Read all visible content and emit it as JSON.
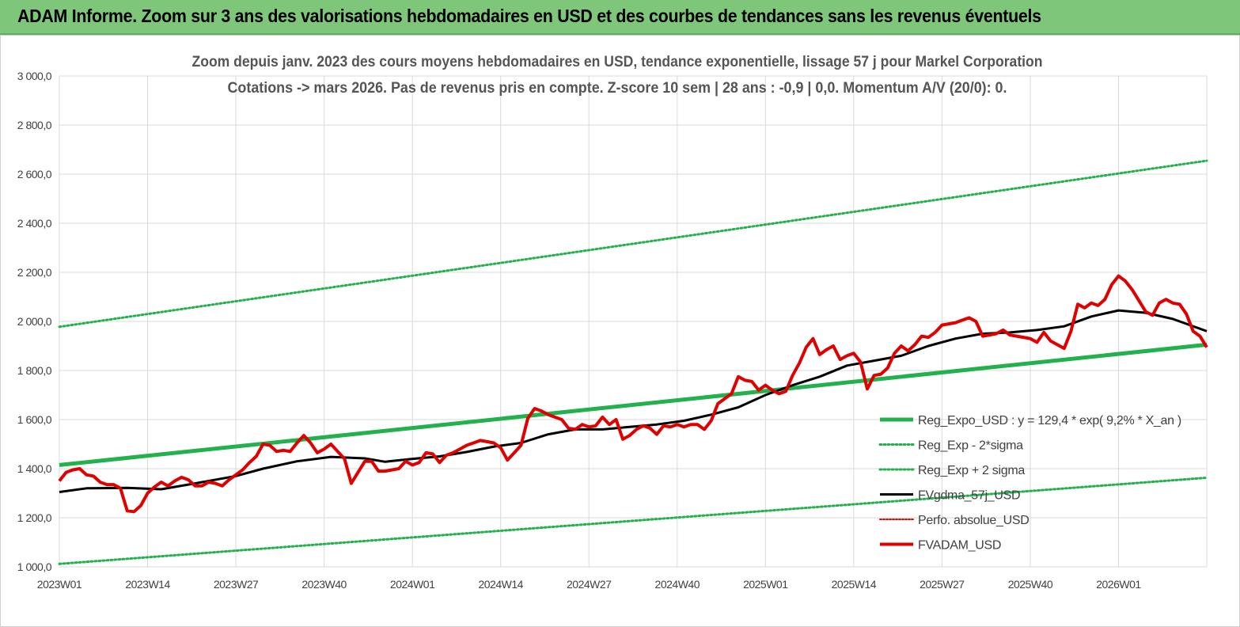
{
  "banner": {
    "title": "ADAM Informe. Zoom sur 3 ans des valorisations hebdomadaires en USD et des courbes de tendances sans les revenus éventuels"
  },
  "colors": {
    "banner_bg": "#7dc67a",
    "regression": "#22b14c",
    "sigma": "#22b14c",
    "fvgdma": "#000000",
    "perfo": "#e00000",
    "fvadam": "#e00000",
    "grid": "#d9d9d9"
  },
  "chart_data": {
    "type": "line",
    "title": "Zoom depuis janv. 2023 des cours moyens hebdomadaires en USD, tendance exponentielle, lissage 57 j pour Markel Corporation",
    "subtitle": "Cotations -> mars 2026. Pas de revenus pris en compte. Z-score 10 sem | 28 ans : -0,9 | 0,0. Momentum A/V (20/0): 0.",
    "xlabel": "",
    "ylabel": "",
    "ylim": [
      1000,
      3000
    ],
    "y_ticks": [
      "1 000,0",
      "1 200,0",
      "1 400,0",
      "1 600,0",
      "1 800,0",
      "2 000,0",
      "2 200,0",
      "2 400,0",
      "2 600,0",
      "2 800,0",
      "3 000,0"
    ],
    "x_ticks": [
      "2023W01",
      "2023W14",
      "2023W27",
      "2023W40",
      "2024W01",
      "2024W14",
      "2024W27",
      "2024W40",
      "2025W01",
      "2025W14",
      "2025W27",
      "2025W40",
      "2026W01"
    ],
    "x_tick_index": [
      0,
      13,
      26,
      39,
      52,
      65,
      78,
      91,
      104,
      117,
      130,
      143,
      156
    ],
    "n_weeks": 170,
    "grid": true,
    "legend_position": "right",
    "series": [
      {
        "name": "Reg_Expo_USD : y = 129,4 * exp( 9,2% * X_an )",
        "style": "solid-thick",
        "points": [
          [
            0,
            1415
          ],
          [
            169,
            1905
          ]
        ]
      },
      {
        "name": "Reg_Exp - 2*sigma",
        "style": "dotted",
        "points": [
          [
            0,
            1012
          ],
          [
            169,
            1363
          ]
        ]
      },
      {
        "name": "Reg_Exp + 2 sigma",
        "style": "dotted",
        "points": [
          [
            0,
            1978
          ],
          [
            169,
            2655
          ]
        ]
      },
      {
        "name": "FVgdma_57j_USD",
        "style": "solid",
        "points": [
          [
            0,
            1305
          ],
          [
            4,
            1320
          ],
          [
            10,
            1322
          ],
          [
            15,
            1316
          ],
          [
            20,
            1340
          ],
          [
            26,
            1370
          ],
          [
            30,
            1400
          ],
          [
            35,
            1430
          ],
          [
            40,
            1448
          ],
          [
            45,
            1442
          ],
          [
            48,
            1428
          ],
          [
            52,
            1440
          ],
          [
            56,
            1450
          ],
          [
            60,
            1468
          ],
          [
            64,
            1490
          ],
          [
            68,
            1505
          ],
          [
            72,
            1540
          ],
          [
            76,
            1560
          ],
          [
            80,
            1560
          ],
          [
            84,
            1570
          ],
          [
            88,
            1580
          ],
          [
            92,
            1595
          ],
          [
            96,
            1620
          ],
          [
            100,
            1650
          ],
          [
            104,
            1700
          ],
          [
            108,
            1740
          ],
          [
            112,
            1775
          ],
          [
            116,
            1820
          ],
          [
            120,
            1840
          ],
          [
            124,
            1860
          ],
          [
            128,
            1900
          ],
          [
            132,
            1930
          ],
          [
            136,
            1950
          ],
          [
            140,
            1955
          ],
          [
            144,
            1965
          ],
          [
            148,
            1980
          ],
          [
            152,
            2020
          ],
          [
            156,
            2045
          ],
          [
            160,
            2035
          ],
          [
            164,
            2010
          ],
          [
            169,
            1960
          ]
        ]
      },
      {
        "name": "Perfo. absolue_USD",
        "style": "dotted-red",
        "points": []
      },
      {
        "name": "FVADAM_USD",
        "style": "solid-red",
        "points": [
          [
            0,
            1350
          ],
          [
            1,
            1385
          ],
          [
            2,
            1395
          ],
          [
            3,
            1400
          ],
          [
            4,
            1375
          ],
          [
            5,
            1370
          ],
          [
            6,
            1345
          ],
          [
            7,
            1335
          ],
          [
            8,
            1335
          ],
          [
            9,
            1320
          ],
          [
            10,
            1228
          ],
          [
            11,
            1225
          ],
          [
            12,
            1250
          ],
          [
            13,
            1300
          ],
          [
            14,
            1325
          ],
          [
            15,
            1345
          ],
          [
            16,
            1330
          ],
          [
            17,
            1350
          ],
          [
            18,
            1365
          ],
          [
            19,
            1355
          ],
          [
            20,
            1330
          ],
          [
            21,
            1330
          ],
          [
            22,
            1345
          ],
          [
            23,
            1340
          ],
          [
            24,
            1330
          ],
          [
            25,
            1355
          ],
          [
            26,
            1375
          ],
          [
            27,
            1395
          ],
          [
            28,
            1425
          ],
          [
            29,
            1450
          ],
          [
            30,
            1500
          ],
          [
            31,
            1495
          ],
          [
            32,
            1470
          ],
          [
            33,
            1475
          ],
          [
            34,
            1470
          ],
          [
            35,
            1505
          ],
          [
            36,
            1535
          ],
          [
            37,
            1505
          ],
          [
            38,
            1465
          ],
          [
            39,
            1480
          ],
          [
            40,
            1500
          ],
          [
            41,
            1470
          ],
          [
            42,
            1440
          ],
          [
            43,
            1340
          ],
          [
            44,
            1385
          ],
          [
            45,
            1430
          ],
          [
            46,
            1430
          ],
          [
            47,
            1390
          ],
          [
            48,
            1390
          ],
          [
            49,
            1395
          ],
          [
            50,
            1400
          ],
          [
            51,
            1430
          ],
          [
            52,
            1415
          ],
          [
            53,
            1425
          ],
          [
            54,
            1465
          ],
          [
            55,
            1460
          ],
          [
            56,
            1425
          ],
          [
            57,
            1455
          ],
          [
            58,
            1465
          ],
          [
            59,
            1480
          ],
          [
            60,
            1495
          ],
          [
            61,
            1505
          ],
          [
            62,
            1515
          ],
          [
            63,
            1510
          ],
          [
            64,
            1505
          ],
          [
            65,
            1485
          ],
          [
            66,
            1435
          ],
          [
            67,
            1465
          ],
          [
            68,
            1495
          ],
          [
            69,
            1605
          ],
          [
            70,
            1645
          ],
          [
            71,
            1635
          ],
          [
            72,
            1620
          ],
          [
            73,
            1610
          ],
          [
            74,
            1600
          ],
          [
            75,
            1565
          ],
          [
            76,
            1560
          ],
          [
            77,
            1580
          ],
          [
            78,
            1570
          ],
          [
            79,
            1575
          ],
          [
            80,
            1610
          ],
          [
            81,
            1580
          ],
          [
            82,
            1600
          ],
          [
            83,
            1520
          ],
          [
            84,
            1535
          ],
          [
            85,
            1560
          ],
          [
            86,
            1575
          ],
          [
            87,
            1565
          ],
          [
            88,
            1540
          ],
          [
            89,
            1575
          ],
          [
            90,
            1570
          ],
          [
            91,
            1580
          ],
          [
            92,
            1570
          ],
          [
            93,
            1580
          ],
          [
            94,
            1580
          ],
          [
            95,
            1560
          ],
          [
            96,
            1595
          ],
          [
            97,
            1665
          ],
          [
            98,
            1685
          ],
          [
            99,
            1705
          ],
          [
            100,
            1775
          ],
          [
            101,
            1760
          ],
          [
            102,
            1755
          ],
          [
            103,
            1720
          ],
          [
            104,
            1740
          ],
          [
            105,
            1720
          ],
          [
            106,
            1705
          ],
          [
            107,
            1715
          ],
          [
            108,
            1780
          ],
          [
            109,
            1830
          ],
          [
            110,
            1895
          ],
          [
            111,
            1930
          ],
          [
            112,
            1865
          ],
          [
            113,
            1885
          ],
          [
            114,
            1900
          ],
          [
            115,
            1845
          ],
          [
            116,
            1860
          ],
          [
            117,
            1870
          ],
          [
            118,
            1835
          ],
          [
            119,
            1725
          ],
          [
            120,
            1780
          ],
          [
            121,
            1785
          ],
          [
            122,
            1810
          ],
          [
            123,
            1870
          ],
          [
            124,
            1900
          ],
          [
            125,
            1880
          ],
          [
            126,
            1905
          ],
          [
            127,
            1940
          ],
          [
            128,
            1935
          ],
          [
            129,
            1955
          ],
          [
            130,
            1985
          ],
          [
            131,
            1990
          ],
          [
            132,
            1995
          ],
          [
            133,
            2005
          ],
          [
            134,
            2015
          ],
          [
            135,
            2000
          ],
          [
            136,
            1940
          ],
          [
            137,
            1945
          ],
          [
            138,
            1950
          ],
          [
            139,
            1965
          ],
          [
            140,
            1945
          ],
          [
            141,
            1940
          ],
          [
            142,
            1935
          ],
          [
            143,
            1930
          ],
          [
            144,
            1915
          ],
          [
            145,
            1955
          ],
          [
            146,
            1920
          ],
          [
            147,
            1905
          ],
          [
            148,
            1890
          ],
          [
            149,
            1960
          ],
          [
            150,
            2070
          ],
          [
            151,
            2055
          ],
          [
            152,
            2075
          ],
          [
            153,
            2065
          ],
          [
            154,
            2090
          ],
          [
            155,
            2150
          ],
          [
            156,
            2185
          ],
          [
            157,
            2165
          ],
          [
            158,
            2130
          ],
          [
            159,
            2085
          ],
          [
            160,
            2040
          ],
          [
            161,
            2025
          ],
          [
            162,
            2075
          ],
          [
            163,
            2090
          ],
          [
            164,
            2075
          ],
          [
            165,
            2070
          ],
          [
            166,
            2030
          ],
          [
            167,
            1960
          ],
          [
            168,
            1940
          ],
          [
            169,
            1895
          ]
        ]
      }
    ]
  }
}
